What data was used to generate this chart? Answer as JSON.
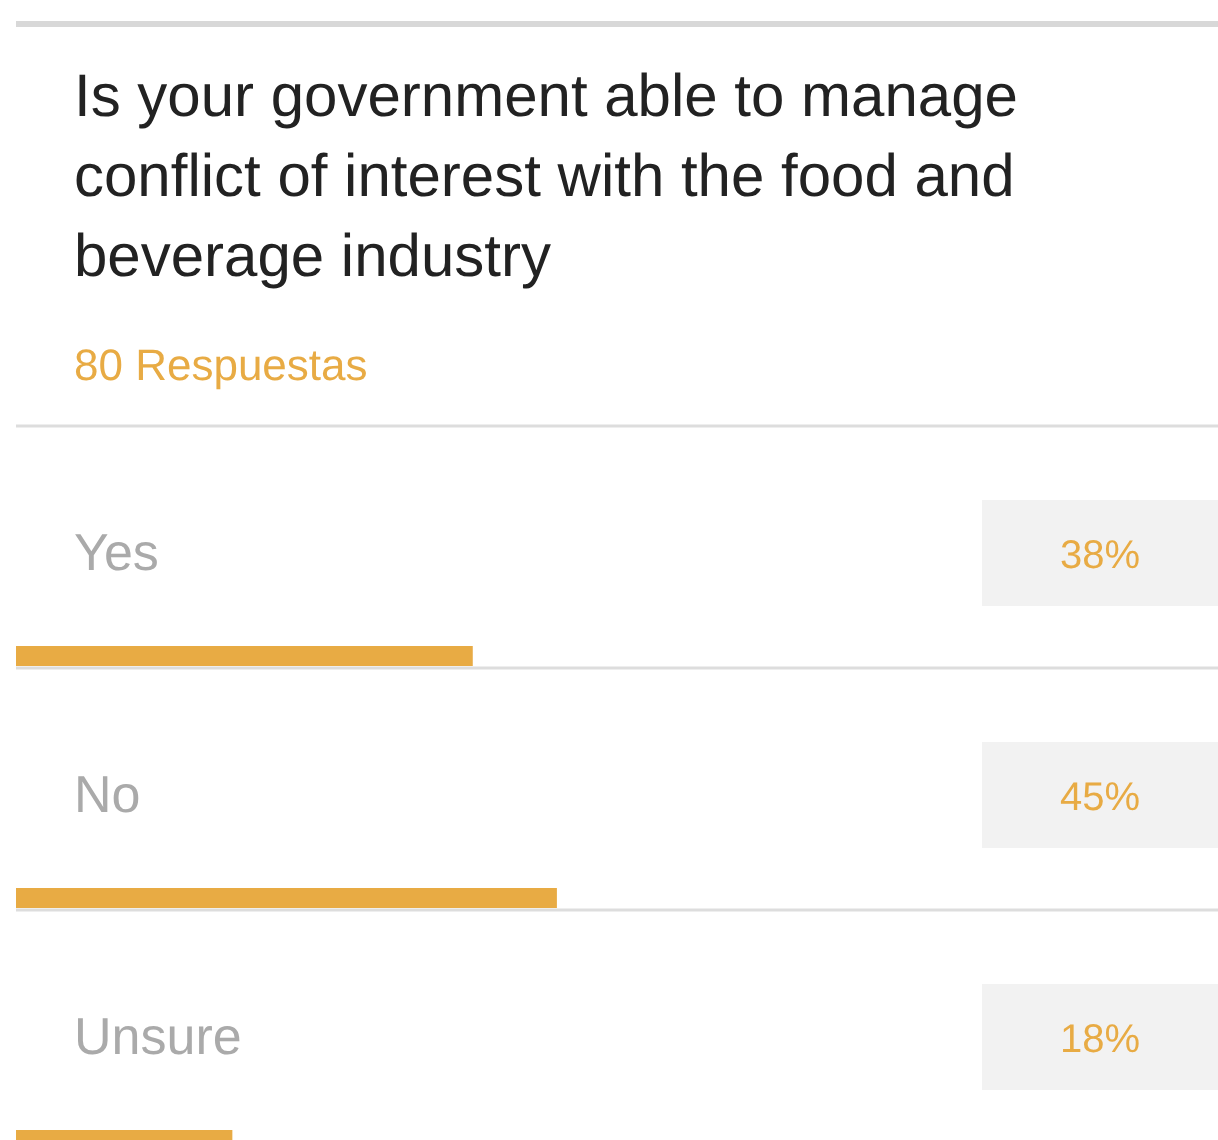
{
  "chart_data": {
    "type": "bar",
    "orientation": "horizontal",
    "title": "Is your government able to manage conflict of interest with the food and beverage industry",
    "subtitle": "80 Respuestas",
    "categories": [
      "Yes",
      "No",
      "Unsure"
    ],
    "values": [
      38,
      45,
      18
    ],
    "value_labels": [
      "38%",
      "45%",
      "18%"
    ],
    "color": "#e8ab44",
    "xlim": [
      0,
      100
    ]
  }
}
